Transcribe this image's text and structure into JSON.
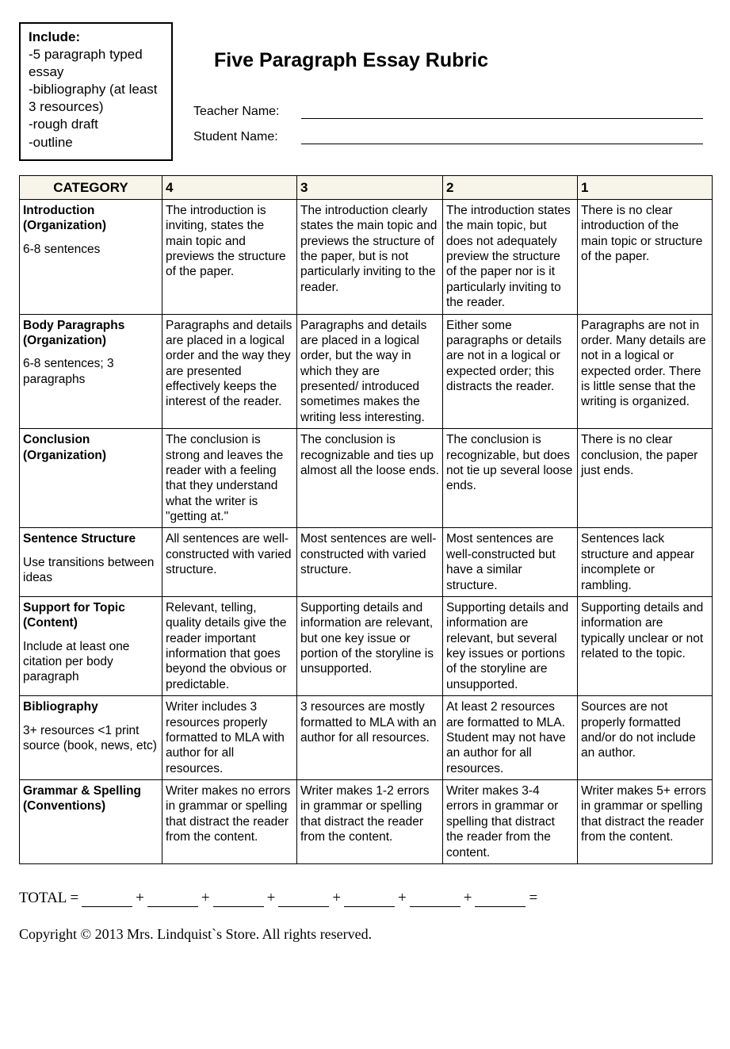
{
  "include": {
    "header": "Include:",
    "items": [
      "-5 paragraph typed essay",
      "-bibliography (at least 3 resources)",
      "-rough draft",
      "-outline"
    ]
  },
  "title": "Five Paragraph Essay Rubric",
  "teacher_label": "Teacher Name:",
  "student_label": "Student Name:",
  "columns": [
    "CATEGORY",
    "4",
    "3",
    "2",
    "1"
  ],
  "rows": [
    {
      "category_bold": "Introduction (Organization)",
      "category_note": "6-8 sentences",
      "c4": "The introduction is inviting, states the main topic and previews the structure of the paper.",
      "c3": "The introduction clearly states the main topic and previews the structure of the paper, but is not particularly inviting to the reader.",
      "c2": "The introduction states the main topic, but does not adequately preview the structure of the paper nor is it particularly inviting to the reader.",
      "c1": "There is no clear introduction of the main topic or structure of the paper."
    },
    {
      "category_bold": "Body Paragraphs (Organization)",
      "category_note": "6-8 sentences; 3 paragraphs",
      "c4": "Paragraphs and details are placed in a logical order and the way they are presented effectively keeps the interest of the reader.",
      "c3": "Paragraphs and details are placed in a logical order, but the way in which they are presented/ introduced sometimes makes the writing less interesting.",
      "c2": "Either some paragraphs or details are not in a logical or expected order; this distracts the reader.",
      "c1": "Paragraphs are not in order. Many details are not in a logical or expected order. There is little sense that the writing is organized."
    },
    {
      "category_bold": "Conclusion (Organization)",
      "category_note": "",
      "c4": "The conclusion is strong and leaves the reader with a feeling that they understand what the writer is \"getting at.\"",
      "c3": "The conclusion is recognizable and ties up almost all the loose ends.",
      "c2": "The conclusion is recognizable, but does not tie up several loose ends.",
      "c1": "There is no clear conclusion, the paper just ends."
    },
    {
      "category_bold": "Sentence Structure",
      "category_note": "Use transitions between ideas",
      "c4": "All sentences are well-constructed with varied structure.",
      "c3": "Most sentences are well-constructed with varied structure.",
      "c2": "Most sentences are well-constructed but have a similar structure.",
      "c1": "Sentences lack structure and appear incomplete or rambling."
    },
    {
      "category_bold": "Support for Topic (Content)",
      "category_note": "Include at least one citation per body paragraph",
      "c4": "Relevant, telling, quality details give the reader important information that goes beyond the obvious or predictable.",
      "c3": "Supporting details and information are relevant, but one key issue or portion of the storyline is unsupported.",
      "c2": "Supporting details and information are relevant, but several key issues or portions of the storyline are unsupported.",
      "c1": "Supporting details and information are typically unclear or not related to the topic."
    },
    {
      "category_bold": "Bibliography",
      "category_note": "3+ resources\n<1 print source (book, news, etc)",
      "c4": "Writer includes 3 resources properly formatted to MLA with author for all resources.",
      "c3": "3 resources are mostly formatted to MLA with an author for all resources.",
      "c2": "At least 2 resources are formatted to MLA.  Student may not have an author for all resources.",
      "c1": "Sources are not properly formatted and/or do not include an author."
    },
    {
      "category_bold": "Grammar & Spelling (Conventions)",
      "category_note": "",
      "c4": "Writer makes no errors in grammar or spelling that distract the reader from the content.",
      "c3": "Writer makes 1-2 errors in grammar or spelling that distract the reader from the content.",
      "c2": "Writer makes 3-4 errors in grammar or spelling that distract the reader from the content.",
      "c1": "Writer makes 5+ errors in grammar or spelling that distract the reader from the content."
    }
  ],
  "total_label": "TOTAL  =",
  "copyright": "Copyright © 2013 Mrs. Lindquist`s Store. All rights reserved."
}
